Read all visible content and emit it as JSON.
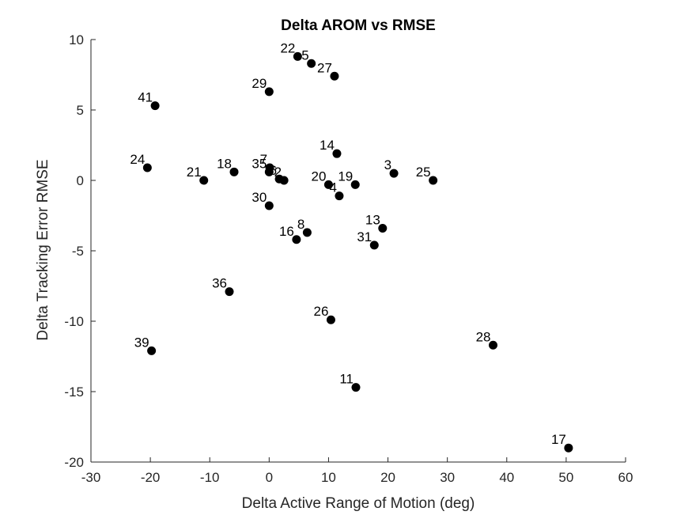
{
  "chart_data": {
    "type": "scatter",
    "title": "Delta AROM vs RMSE",
    "xlabel": "Delta Active Range of Motion (deg)",
    "ylabel": "Delta Tracking Error RMSE",
    "xlim": [
      -30,
      60
    ],
    "ylim": [
      -20,
      10
    ],
    "xticks": [
      "-30",
      "-20",
      "-10",
      "0",
      "10",
      "20",
      "30",
      "40",
      "50",
      "60"
    ],
    "yticks": [
      "10",
      "5",
      "0",
      "-5",
      "-10",
      "-15",
      "-20"
    ],
    "grid": false,
    "marker_color": "#000000",
    "points": [
      {
        "label": "22",
        "x": 4.8,
        "y": 8.8
      },
      {
        "label": "5",
        "x": 7.1,
        "y": 8.3
      },
      {
        "label": "27",
        "x": 11.0,
        "y": 7.4
      },
      {
        "label": "29",
        "x": 0.0,
        "y": 6.3
      },
      {
        "label": "41",
        "x": -19.2,
        "y": 5.3
      },
      {
        "label": "14",
        "x": 11.4,
        "y": 1.9
      },
      {
        "label": "24",
        "x": -20.5,
        "y": 0.9
      },
      {
        "label": "7",
        "x": 0.1,
        "y": 0.9
      },
      {
        "label": "35",
        "x": 0.0,
        "y": 0.6
      },
      {
        "label": "18",
        "x": -5.9,
        "y": 0.6
      },
      {
        "label": "3",
        "x": 21.0,
        "y": 0.5
      },
      {
        "label": "6",
        "x": 1.7,
        "y": 0.1
      },
      {
        "label": "2",
        "x": 2.5,
        "y": 0.0
      },
      {
        "label": "21",
        "x": -11.0,
        "y": 0.0
      },
      {
        "label": "25",
        "x": 27.6,
        "y": 0.0
      },
      {
        "label": "20",
        "x": 10.0,
        "y": -0.3
      },
      {
        "label": "19",
        "x": 14.5,
        "y": -0.3
      },
      {
        "label": "4",
        "x": 11.8,
        "y": -1.1
      },
      {
        "label": "30",
        "x": 0.0,
        "y": -1.8
      },
      {
        "label": "13",
        "x": 19.1,
        "y": -3.4
      },
      {
        "label": "8",
        "x": 6.4,
        "y": -3.7
      },
      {
        "label": "16",
        "x": 4.6,
        "y": -4.2
      },
      {
        "label": "31",
        "x": 17.7,
        "y": -4.6
      },
      {
        "label": "36",
        "x": -6.7,
        "y": -7.9
      },
      {
        "label": "26",
        "x": 10.4,
        "y": -9.9
      },
      {
        "label": "28",
        "x": 37.7,
        "y": -11.7
      },
      {
        "label": "39",
        "x": -19.8,
        "y": -12.1
      },
      {
        "label": "11",
        "x": 14.6,
        "y": -14.7
      },
      {
        "label": "17",
        "x": 50.4,
        "y": -19.0
      }
    ]
  }
}
